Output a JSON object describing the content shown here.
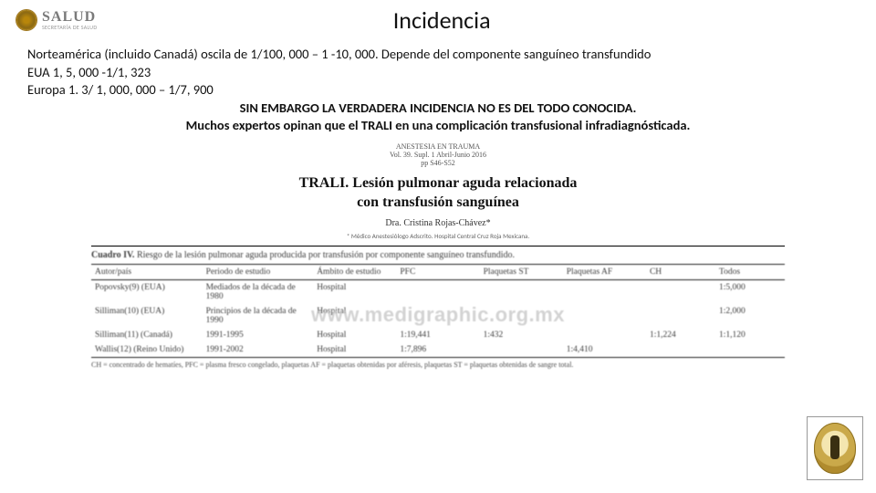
{
  "header": {
    "brand": "SALUD",
    "brand_sub": "SECRETARÍA DE SALUD",
    "title": "Incidencia"
  },
  "para": {
    "l1a": "Norteamérica (incluido Canadá)   oscila de 1/100, 000 – 1 -10, 000. Depende del componente sanguíneo transfundido",
    "l2": "EUA  1, 5, 000 -1/1, 323",
    "l3": "Europa 1. 3/ 1, 000, 000 – 1/7, 900",
    "bold1": "SIN EMBARGO LA VERDADERA  INCIDENCIA NO ES DEL TODO CONOCIDA.",
    "bold2": "Muchos expertos opinan que el TRALI en una complicación transfusional  infradiagnósticada."
  },
  "figure": {
    "journal1": "ANESTESIA EN TRAUMA",
    "journal2": "Vol. 39. Supl. 1 Abril-Junio 2016",
    "journal3": "pp S46-S52",
    "art_title1": "TRALI. Lesión pulmonar aguda relacionada",
    "art_title2": "con transfusión sanguínea",
    "author": "Dra. Cristina Rojas-Chávez*",
    "affil": "* Médico Anestesiólogo Adscrito. Hospital Central Cruz Roja Mexicana."
  },
  "table": {
    "caption_label": "Cuadro IV.",
    "caption_text": " Riesgo de la lesión pulmonar aguda producida por transfusión por componente sanguíneo transfundido.",
    "headers": {
      "c0": "Autor/país",
      "c1": "Periodo de estudio",
      "c2": "Ámbito de estudio",
      "c3": "PFC",
      "c4": "Plaquetas ST",
      "c5": "Plaquetas AF",
      "c6": "CH",
      "c7": "Todos"
    },
    "rows": [
      {
        "c0": "Popovsky(9) (EUA)",
        "c1": "Mediados de la década de 1980",
        "c2": "Hospital",
        "c3": "",
        "c4": "",
        "c5": "",
        "c6": "",
        "c7": "1:5,000"
      },
      {
        "c0": "Silliman(10) (EUA)",
        "c1": "Principios de la década de 1990",
        "c2": "Hospital",
        "c3": "",
        "c4": "",
        "c5": "",
        "c6": "",
        "c7": "1:2,000"
      },
      {
        "c0": "Silliman(11) (Canadá)",
        "c1": "1991-1995",
        "c2": "Hospital",
        "c3": "1:19,441",
        "c4": "1:432",
        "c5": "",
        "c6": "1:1,224",
        "c7": "1:1,120"
      },
      {
        "c0": "Wallis(12) (Reino Unido)",
        "c1": "1991-2002",
        "c2": "Hospital",
        "c3": "1:7,896",
        "c4": "",
        "c5": "1:4,410",
        "c6": "",
        "c7": ""
      }
    ],
    "footnote": "CH = concentrado de hematíes, PFC = plasma fresco congelado, plaquetas AF = plaquetas obtenidas por aféresis, plaquetas ST = plaquetas obtenidas de sangre total.",
    "watermark": "www.medigraphic.org.mx"
  }
}
